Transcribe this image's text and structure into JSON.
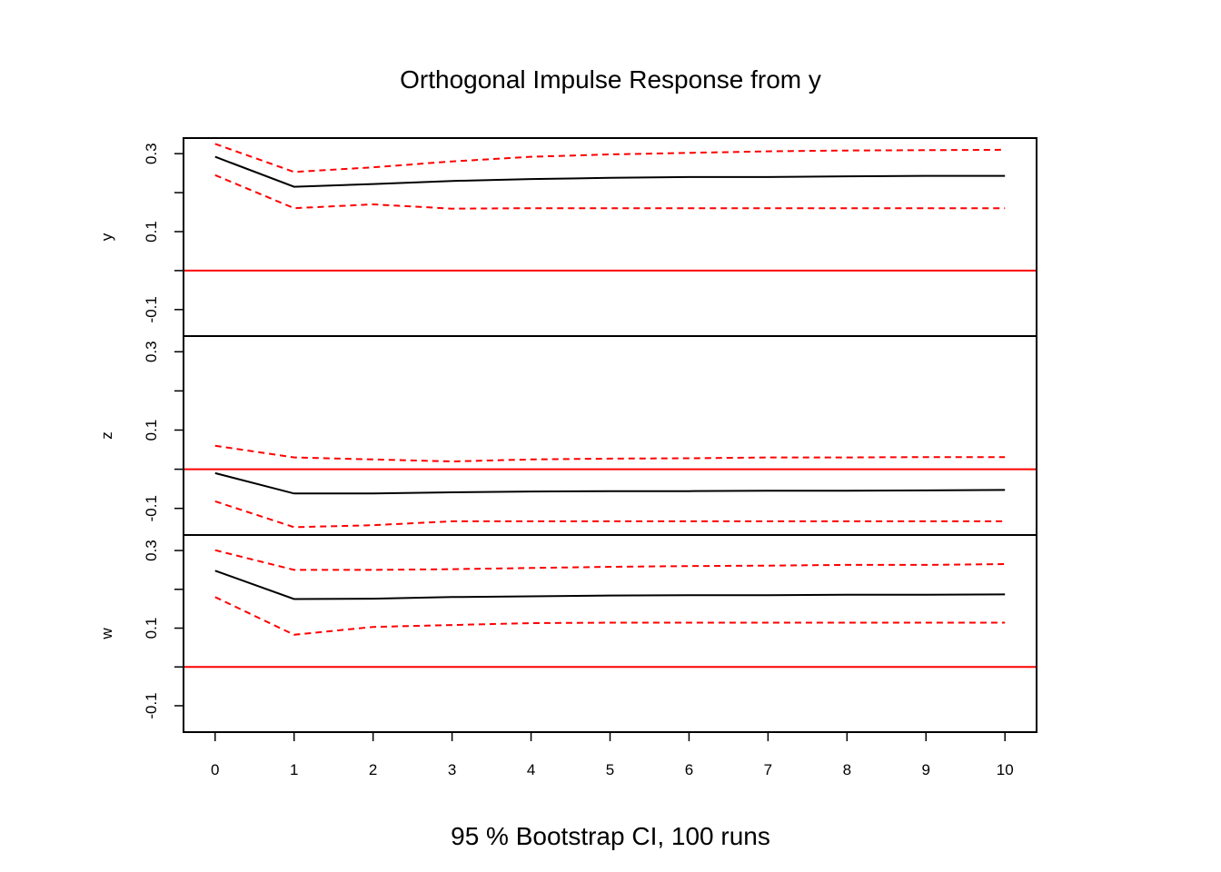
{
  "chart_data": {
    "type": "line",
    "title": "Orthogonal Impulse Response from y",
    "xlabel": "95 % Bootstrap CI,  100 runs",
    "x": [
      0,
      1,
      2,
      3,
      4,
      5,
      6,
      7,
      8,
      9,
      10
    ],
    "x_tick_labels": [
      "0",
      "1",
      "2",
      "3",
      "4",
      "5",
      "6",
      "7",
      "8",
      "9",
      "10"
    ],
    "xlim": [
      -0.4,
      10.4
    ],
    "ylim": [
      -0.168,
      0.34
    ],
    "y_tick_labels": [
      "-0.1",
      "0.1",
      "0.3"
    ],
    "y_ticks": [
      -0.1,
      0.1,
      0.3
    ],
    "y_minor_ticks": [
      0.0,
      0.2
    ],
    "grid": false,
    "colors": {
      "response": "#000000",
      "ci": "#ff0000",
      "zero_line": "#ff0000",
      "frame": "#000000"
    },
    "panels": [
      {
        "label": "y",
        "response": [
          0.292,
          0.215,
          0.222,
          0.23,
          0.235,
          0.238,
          0.24,
          0.24,
          0.242,
          0.243,
          0.243
        ],
        "upper": [
          0.325,
          0.253,
          0.265,
          0.28,
          0.292,
          0.298,
          0.302,
          0.306,
          0.308,
          0.309,
          0.31
        ],
        "lower": [
          0.245,
          0.16,
          0.17,
          0.159,
          0.16,
          0.16,
          0.16,
          0.16,
          0.16,
          0.16,
          0.16
        ]
      },
      {
        "label": "z",
        "response": [
          -0.01,
          -0.062,
          -0.062,
          -0.059,
          -0.057,
          -0.056,
          -0.056,
          -0.055,
          -0.055,
          -0.054,
          -0.053
        ],
        "upper": [
          0.06,
          0.03,
          0.025,
          0.02,
          0.025,
          0.027,
          0.028,
          0.03,
          0.03,
          0.031,
          0.031
        ],
        "lower": [
          -0.082,
          -0.148,
          -0.143,
          -0.133,
          -0.133,
          -0.133,
          -0.133,
          -0.133,
          -0.133,
          -0.133,
          -0.133
        ]
      },
      {
        "label": "w",
        "response": [
          0.248,
          0.175,
          0.176,
          0.18,
          0.182,
          0.184,
          0.185,
          0.185,
          0.186,
          0.186,
          0.187
        ],
        "upper": [
          0.301,
          0.25,
          0.25,
          0.252,
          0.255,
          0.258,
          0.26,
          0.261,
          0.263,
          0.263,
          0.265
        ],
        "lower": [
          0.18,
          0.083,
          0.103,
          0.108,
          0.113,
          0.114,
          0.114,
          0.114,
          0.114,
          0.114,
          0.114
        ]
      }
    ]
  }
}
